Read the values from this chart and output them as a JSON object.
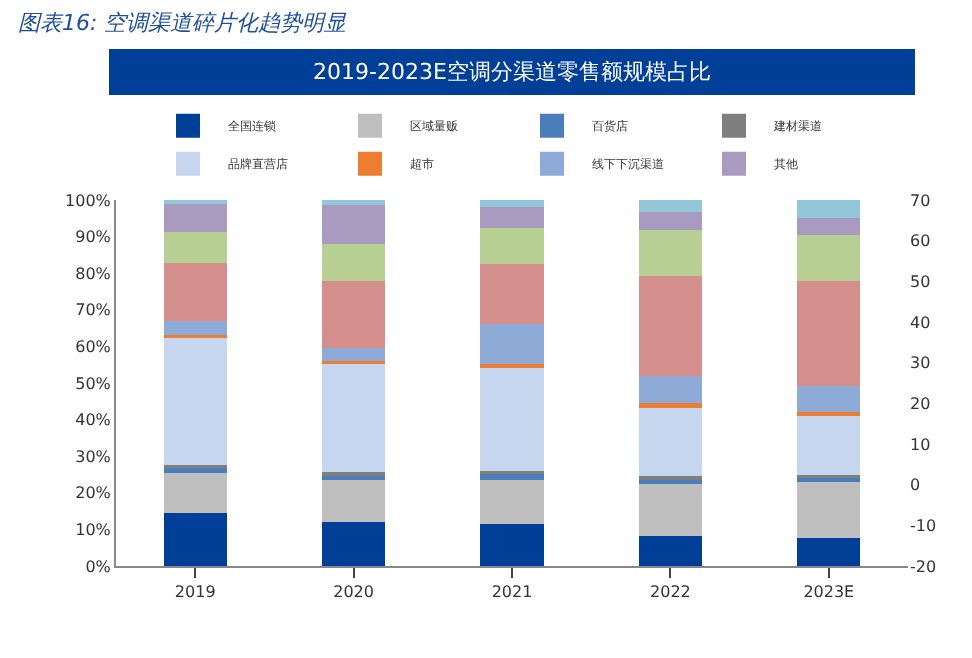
{
  "chart_data": {
    "type": "bar",
    "stacked": true,
    "title": "图表16: 空调渠道碎片化趋势明显",
    "subtitle": "2019-2023E空调分渠道零售额规模占比",
    "categories": [
      "2019",
      "2020",
      "2021",
      "2022",
      "2023E"
    ],
    "series": [
      {
        "name": "全国连锁",
        "color": "#003f98",
        "values": [
          14.5,
          12.0,
          11.4,
          8.1,
          7.7
        ]
      },
      {
        "name": "区域量贩",
        "color": "#bfbfbf",
        "values": [
          10.8,
          11.4,
          12.0,
          14.4,
          15.7
        ]
      },
      {
        "name": "百货店",
        "color": "#4a7ebb",
        "values": [
          1.5,
          1.5,
          1.9,
          1.5,
          1.0
        ]
      },
      {
        "name": "建材渠道",
        "color": "#7f7f7f",
        "values": [
          0.7,
          0.7,
          0.7,
          0.5,
          0.5
        ]
      },
      {
        "name": "品牌直营店",
        "color": "#c5d6ee",
        "values": [
          35.2,
          29.6,
          28.4,
          19.2,
          16.2
        ]
      },
      {
        "name": "超市",
        "color": "#ed7d31",
        "values": [
          0.4,
          0.9,
          0.8,
          0.8,
          1.0
        ]
      },
      {
        "name": "线下下沉渠道",
        "color": "#8eaad6",
        "values": [
          3.9,
          3.5,
          11.0,
          7.3,
          7.0
        ]
      },
      {
        "color": "#d48f8d",
        "values": [
          15.8,
          18.3,
          16.3,
          27.5,
          28.8
        ]
      },
      {
        "color": "#b8cf94",
        "values": [
          8.5,
          10.1,
          9.9,
          12.4,
          12.5
        ]
      },
      {
        "name": "其他",
        "color": "#a99bc0",
        "values": [
          7.8,
          10.7,
          5.8,
          5.0,
          4.6
        ]
      },
      {
        "color": "#93c6d8",
        "values": [
          0.9,
          1.3,
          1.8,
          3.3,
          5.0
        ]
      }
    ],
    "ylim": [
      0,
      100
    ],
    "yticks": [
      {
        "value": 0,
        "label": "0%"
      },
      {
        "value": 10,
        "label": "10%"
      },
      {
        "value": 20,
        "label": "20%"
      },
      {
        "value": 30,
        "label": "30%"
      },
      {
        "value": 40,
        "label": "40%"
      },
      {
        "value": 50,
        "label": "50%"
      },
      {
        "value": 60,
        "label": "60%"
      },
      {
        "value": 70,
        "label": "70%"
      },
      {
        "value": 80,
        "label": "80%"
      },
      {
        "value": 90,
        "label": "90%"
      },
      {
        "value": 100,
        "label": "100%"
      }
    ],
    "y2lim": [
      -20,
      70
    ],
    "y2ticks": [
      -20,
      -10,
      0,
      10,
      20,
      30,
      40,
      50,
      60,
      70
    ],
    "legend": "top"
  }
}
